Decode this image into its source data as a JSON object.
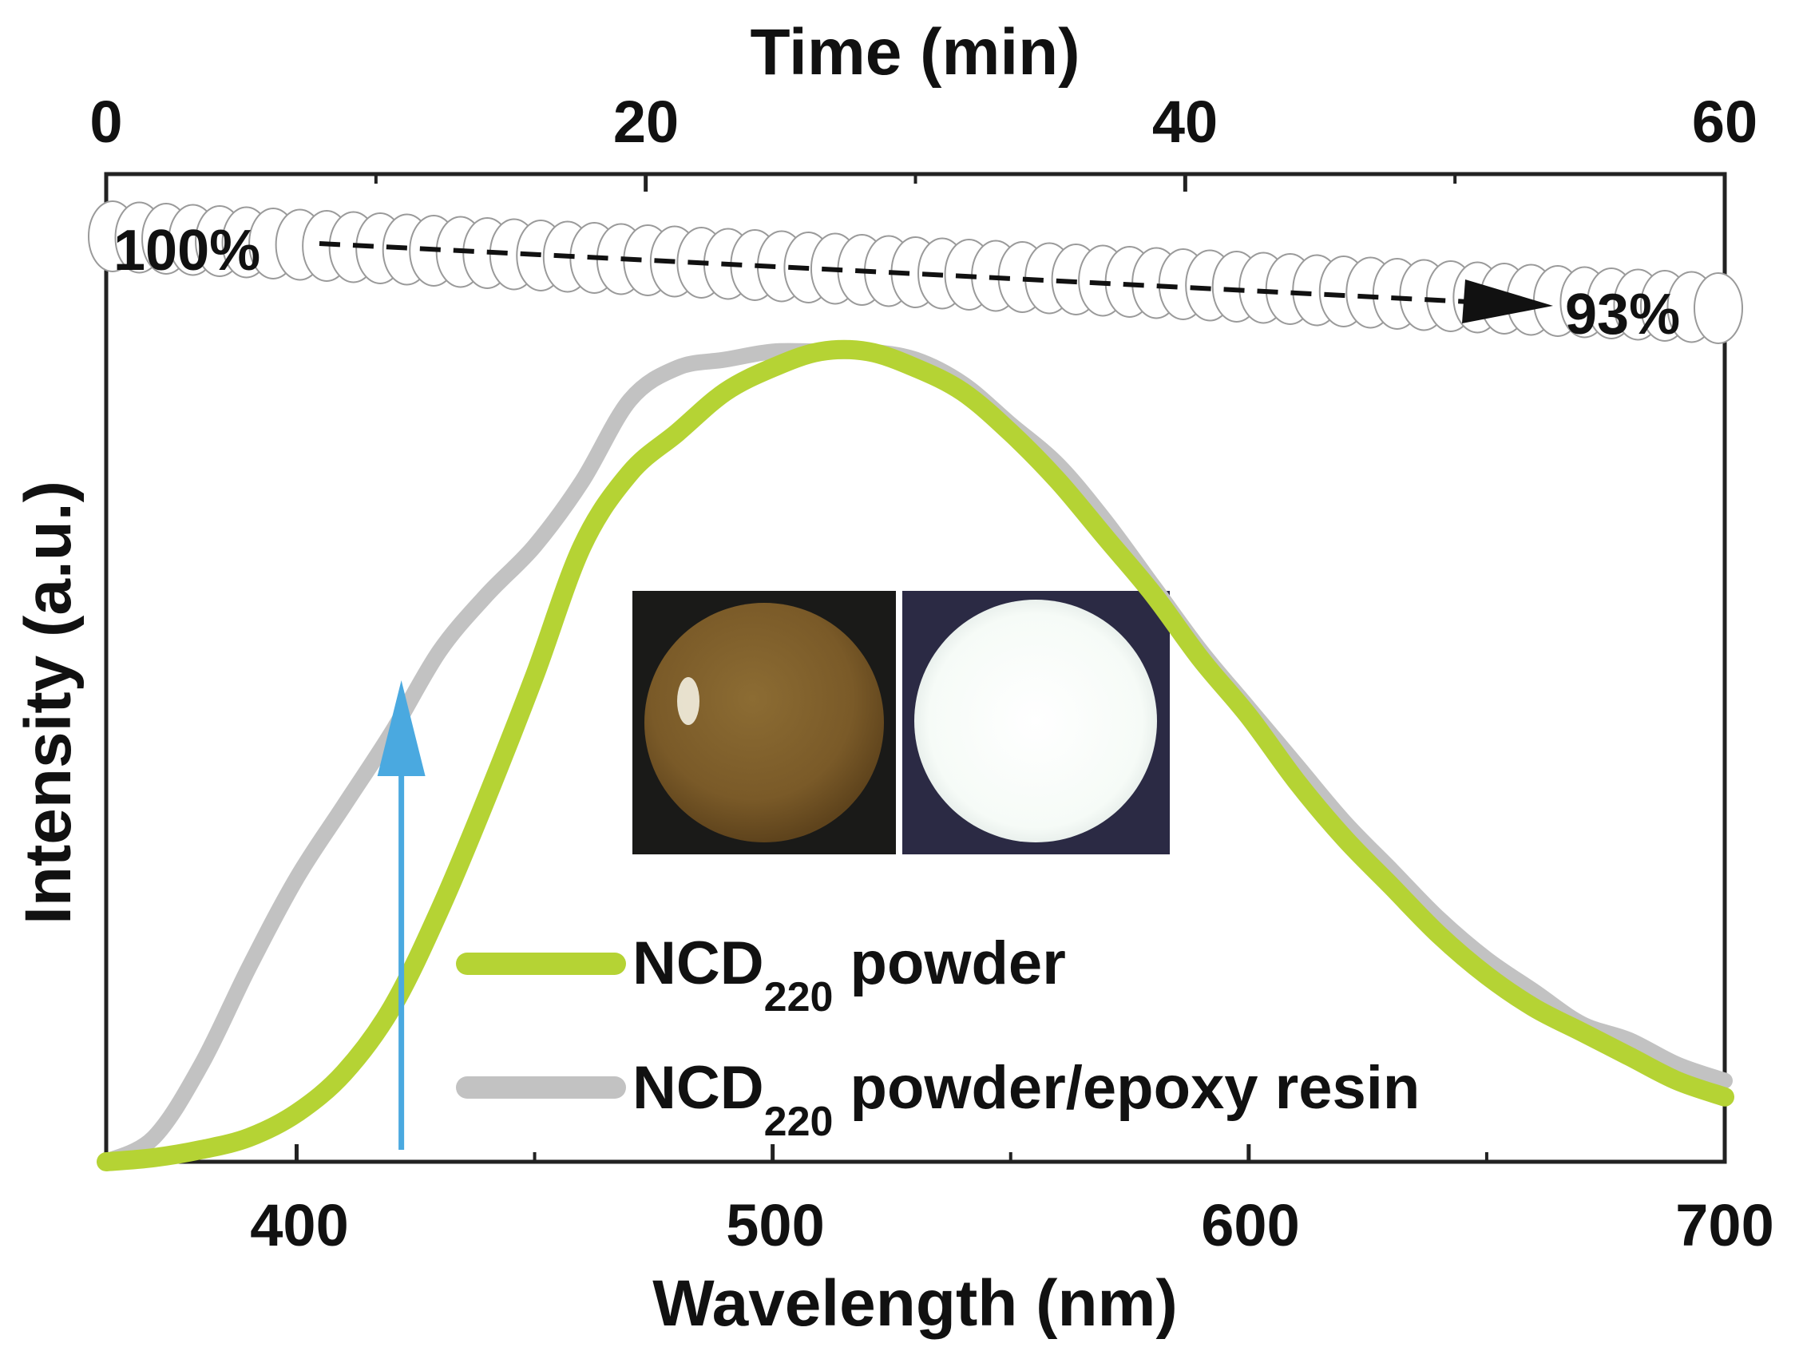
{
  "chart_data": {
    "type": "line",
    "xlabel": "Wavelength (nm)",
    "ylabel": "Intensity (a.u.)",
    "xlim": [
      360,
      700
    ],
    "ylim": [
      0,
      1.02
    ],
    "x_ticks": [
      "400",
      "500",
      "600",
      "700"
    ],
    "top_axis": {
      "label": "Time (min)",
      "lim": [
        0,
        60
      ],
      "ticks": [
        "0",
        "20",
        "40",
        "60"
      ]
    },
    "grid": false,
    "legend_position": "bottom-center",
    "series": [
      {
        "name_main": "NCD",
        "name_sub": "220",
        "name_rest": " powder",
        "color": "#b5d334",
        "x": [
          360,
          370,
          380,
          390,
          400,
          410,
          420,
          430,
          440,
          450,
          460,
          470,
          480,
          490,
          500,
          510,
          520,
          530,
          540,
          550,
          560,
          570,
          580,
          590,
          600,
          610,
          620,
          630,
          640,
          650,
          660,
          670,
          680,
          690,
          700
        ],
        "y": [
          0.0,
          0.005,
          0.015,
          0.03,
          0.06,
          0.11,
          0.19,
          0.31,
          0.45,
          0.6,
          0.76,
          0.85,
          0.9,
          0.95,
          0.98,
          1.0,
          1.0,
          0.98,
          0.95,
          0.9,
          0.84,
          0.77,
          0.7,
          0.62,
          0.55,
          0.47,
          0.4,
          0.34,
          0.28,
          0.23,
          0.19,
          0.16,
          0.13,
          0.1,
          0.08
        ]
      },
      {
        "name_main": "NCD",
        "name_sub": "220",
        "name_rest": " powder/epoxy resin",
        "color": "#c2c2c2",
        "x": [
          360,
          370,
          380,
          390,
          400,
          410,
          420,
          430,
          440,
          450,
          460,
          470,
          480,
          490,
          500,
          510,
          520,
          530,
          540,
          550,
          560,
          570,
          580,
          590,
          600,
          610,
          620,
          630,
          640,
          650,
          660,
          670,
          680,
          690,
          700
        ],
        "y": [
          0.0,
          0.03,
          0.12,
          0.24,
          0.35,
          0.44,
          0.53,
          0.63,
          0.7,
          0.76,
          0.84,
          0.94,
          0.98,
          0.99,
          1.0,
          1.0,
          1.0,
          0.99,
          0.96,
          0.91,
          0.86,
          0.79,
          0.71,
          0.63,
          0.56,
          0.49,
          0.42,
          0.36,
          0.3,
          0.25,
          0.21,
          0.17,
          0.15,
          0.12,
          0.1
        ]
      }
    ],
    "stability_band": {
      "time_start": 0,
      "time_end": 60,
      "start_label": "100%",
      "end_label": "93%"
    },
    "excitation_arrow": {
      "wavelength": 422,
      "color": "#4aa9e0"
    },
    "inset": {
      "left_sample": "NCD220 powder/epoxy resin under daylight",
      "right_sample": "NCD220 powder/epoxy resin under UV excitation"
    }
  }
}
